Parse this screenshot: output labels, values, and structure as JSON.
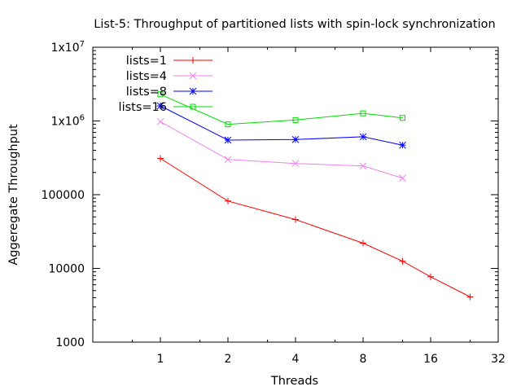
{
  "chart_data": {
    "type": "line",
    "title": "List-5: Throughput of partitioned lists with spin-lock synchronization",
    "xlabel": "Threads",
    "ylabel": "Aggeregate Throughput",
    "xscale": "log2",
    "yscale": "log10",
    "xlim": [
      0.5,
      32
    ],
    "ylim": [
      1000,
      10000000
    ],
    "x_ticks": [
      {
        "value": 1,
        "label": "1"
      },
      {
        "value": 2,
        "label": "2"
      },
      {
        "value": 4,
        "label": "4"
      },
      {
        "value": 8,
        "label": "8"
      },
      {
        "value": 16,
        "label": "16"
      },
      {
        "value": 32,
        "label": "32"
      }
    ],
    "y_ticks": [
      {
        "value": 1000,
        "label": "1000"
      },
      {
        "value": 10000,
        "label": "10000"
      },
      {
        "value": 100000,
        "label": "100000"
      },
      {
        "value": 1000000,
        "label": "1x10^6"
      },
      {
        "value": 10000000,
        "label": "1x10^7"
      }
    ],
    "grid": false,
    "legend_position": "top-left",
    "series": [
      {
        "name": "lists=1",
        "color": "#ff0000",
        "marker": "plus",
        "x": [
          1,
          2,
          4,
          8,
          12,
          16,
          24
        ],
        "y": [
          310000,
          82000,
          46000,
          22000,
          12500,
          7700,
          4100
        ]
      },
      {
        "name": "lists=4",
        "color": "#ee82ee",
        "marker": "cross",
        "x": [
          1,
          2,
          4,
          8,
          12
        ],
        "y": [
          980000,
          300000,
          265000,
          245000,
          168000
        ]
      },
      {
        "name": "lists=8",
        "color": "#0000ff",
        "marker": "asterisk",
        "x": [
          1,
          2,
          4,
          8,
          12
        ],
        "y": [
          1600000,
          550000,
          560000,
          610000,
          470000
        ]
      },
      {
        "name": "lists=16",
        "color": "#00dd00",
        "marker": "square",
        "x": [
          1,
          2,
          4,
          8,
          12
        ],
        "y": [
          2300000,
          900000,
          1030000,
          1270000,
          1100000
        ]
      }
    ]
  }
}
